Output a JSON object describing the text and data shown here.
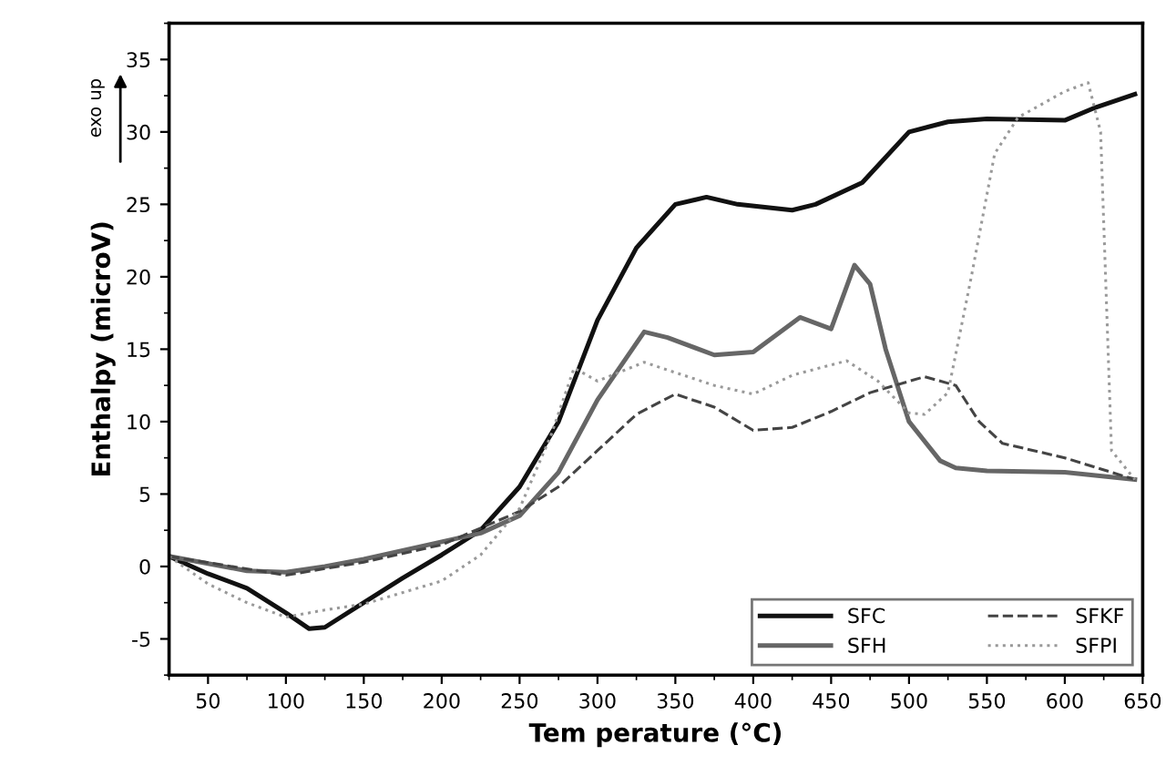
{
  "chart_data": {
    "type": "line",
    "xlabel": "Tem perature (°C)",
    "ylabel": "Enthalpy (microV)",
    "annotations": [
      "exo up"
    ],
    "xlim": [
      25,
      650
    ],
    "ylim": [
      -7.5,
      37.5
    ],
    "xticks": [
      50,
      100,
      150,
      200,
      250,
      300,
      350,
      400,
      450,
      500,
      550,
      600,
      650
    ],
    "yticks": [
      -5,
      0,
      5,
      10,
      15,
      20,
      25,
      30,
      35
    ],
    "legend": "bottom right",
    "grid": false,
    "marker": "none",
    "series": [
      {
        "name": "SFC",
        "color": "#111111",
        "line_style": "solid",
        "x": [
          25,
          50,
          75,
          100,
          115,
          125,
          150,
          175,
          200,
          225,
          250,
          275,
          300,
          325,
          350,
          370,
          390,
          425,
          440,
          470,
          500,
          525,
          550,
          600,
          620,
          645
        ],
        "values": [
          0.7,
          -0.5,
          -1.5,
          -3.2,
          -4.3,
          -4.2,
          -2.5,
          -0.8,
          0.8,
          2.5,
          5.5,
          10,
          17,
          22,
          25,
          25.5,
          25,
          24.6,
          25,
          26.5,
          30,
          30.7,
          30.9,
          30.8,
          31.7,
          32.6
        ]
      },
      {
        "name": "SFH",
        "color": "#666666",
        "line_style": "solid",
        "x": [
          25,
          50,
          75,
          100,
          125,
          150,
          200,
          225,
          250,
          275,
          300,
          330,
          345,
          375,
          400,
          430,
          450,
          465,
          475,
          485,
          500,
          520,
          530,
          550,
          600,
          645
        ],
        "values": [
          0.7,
          0.2,
          -0.3,
          -0.4,
          0,
          0.5,
          1.7,
          2.3,
          3.5,
          6.5,
          11.5,
          16.2,
          15.8,
          14.6,
          14.8,
          17.2,
          16.4,
          20.8,
          19.5,
          15,
          10,
          7.3,
          6.8,
          6.6,
          6.5,
          6.0
        ]
      },
      {
        "name": "SFKF",
        "color": "#444444",
        "line_style": "dashed",
        "x": [
          25,
          100,
          150,
          200,
          250,
          275,
          300,
          325,
          350,
          375,
          400,
          425,
          450,
          475,
          510,
          530,
          545,
          560,
          600,
          645
        ],
        "values": [
          0.7,
          -0.6,
          0.3,
          1.5,
          3.8,
          5.5,
          8,
          10.5,
          11.9,
          11,
          9.4,
          9.6,
          10.7,
          12,
          13.1,
          12.5,
          10,
          8.5,
          7.5,
          6.0
        ]
      },
      {
        "name": "SFPI",
        "color": "#999999",
        "line_style": "dotted",
        "x": [
          25,
          50,
          75,
          100,
          125,
          150,
          200,
          225,
          250,
          270,
          285,
          300,
          330,
          375,
          400,
          425,
          460,
          480,
          500,
          510,
          525,
          540,
          555,
          570,
          600,
          615,
          623,
          630,
          645
        ],
        "values": [
          0.7,
          -1.2,
          -2.5,
          -3.5,
          -3.0,
          -2.6,
          -1.0,
          0.8,
          4,
          9,
          13.7,
          12.8,
          14.1,
          12.5,
          11.9,
          13.2,
          14.2,
          12.8,
          10.6,
          10.5,
          12,
          20,
          28.5,
          31,
          32.8,
          33.4,
          30,
          8,
          6.0
        ]
      }
    ]
  }
}
